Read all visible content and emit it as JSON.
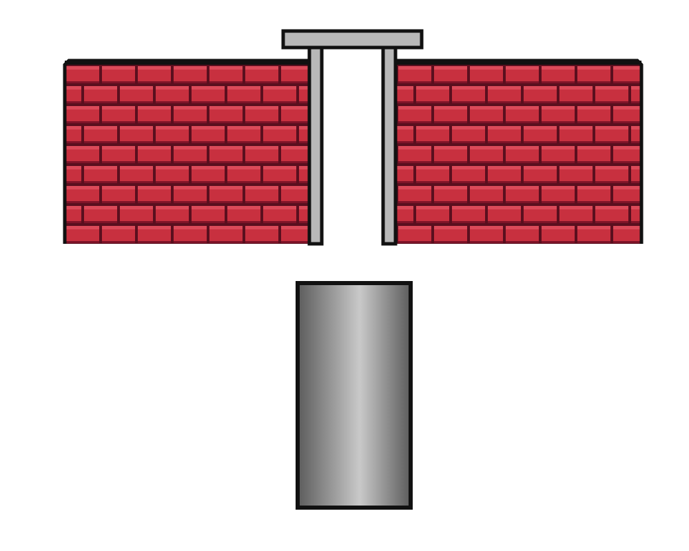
{
  "colors": {
    "background": "#ffffff",
    "brick_fill": "#c8303f",
    "brick_highlight": "#dc4a59",
    "brick_shadow": "#7e1428",
    "mortar": "#5a0f1e",
    "outline": "#111111",
    "frame_fill": "#b8b8b8",
    "block_dark": "#5c5c5c",
    "block_light": "#c9c9c9"
  },
  "scene": {
    "wall_left": {
      "icon": "brick-wall"
    },
    "wall_right": {
      "icon": "brick-wall"
    },
    "opening_frame": {
      "icon": "doorway-frame"
    },
    "block": {
      "icon": "gray-cylinder"
    }
  }
}
